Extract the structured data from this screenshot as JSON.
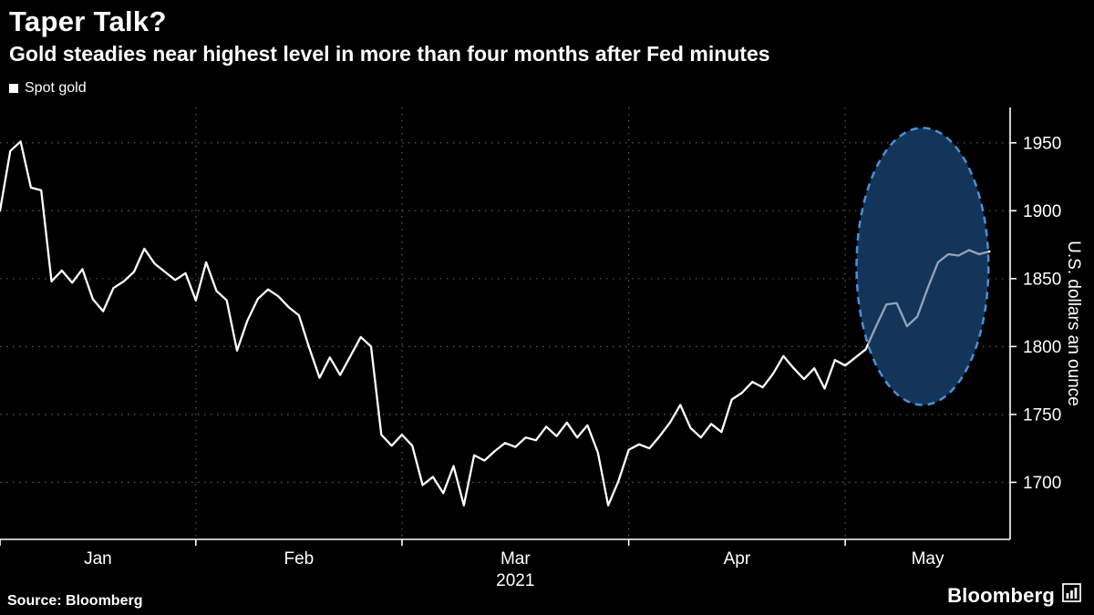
{
  "header": {
    "title": "Taper Talk?",
    "subtitle": "Gold steadies near highest level in more than four months after Fed minutes"
  },
  "legend": {
    "items": [
      {
        "label": "Spot gold",
        "marker_color": "#ffffff"
      }
    ]
  },
  "footer": {
    "source": "Source: Bloomberg",
    "brand": "Bloomberg"
  },
  "colors": {
    "background": "#000000",
    "text": "#ffffff",
    "grid": "#5c5c5c",
    "line": "#ffffff",
    "highlight_fill": "#14365a",
    "highlight_stroke": "#4d8fd6"
  },
  "chart_data": {
    "type": "line",
    "title": "Taper Talk?",
    "subtitle": "Gold steadies near highest level in more than four months after Fed minutes",
    "legend_position": "top-left",
    "grid": {
      "horizontal_dotted": true,
      "vertical_dotted_at_month_starts": true
    },
    "x_axis": {
      "unit": "trading-day index from start of Jan 2021",
      "domain": [
        0,
        98
      ],
      "months": [
        {
          "label": "Jan",
          "start_day": 0
        },
        {
          "label": "Feb",
          "start_day": 19
        },
        {
          "label": "Mar",
          "start_day": 39
        },
        {
          "label": "Apr",
          "start_day": 61
        },
        {
          "label": "May",
          "start_day": 82
        }
      ],
      "year_label": "2021",
      "year_center_day": 50
    },
    "y_axis": {
      "label": "U.S. dollars an ounce",
      "ticks": [
        1700,
        1750,
        1800,
        1850,
        1900,
        1950
      ],
      "range": [
        1658,
        1976
      ],
      "side": "right"
    },
    "series": [
      {
        "name": "Spot gold",
        "color": "#ffffff",
        "values": [
          1900,
          1944,
          1951,
          1917,
          1915,
          1848,
          1856,
          1847,
          1857,
          1835,
          1826,
          1843,
          1848,
          1855,
          1872,
          1861,
          1855,
          1849,
          1854,
          1834,
          1862,
          1841,
          1834,
          1797,
          1819,
          1835,
          1842,
          1837,
          1829,
          1823,
          1799,
          1777,
          1792,
          1779,
          1793,
          1807,
          1800,
          1735,
          1727,
          1735,
          1727,
          1698,
          1704,
          1692,
          1712,
          1683,
          1720,
          1716,
          1723,
          1729,
          1726,
          1733,
          1731,
          1741,
          1734,
          1744,
          1733,
          1742,
          1722,
          1683,
          1701,
          1724,
          1728,
          1725,
          1734,
          1744,
          1757,
          1740,
          1733,
          1743,
          1737,
          1761,
          1766,
          1774,
          1770,
          1780,
          1793,
          1784,
          1776,
          1784,
          1769,
          1790,
          1786,
          1792,
          1798,
          1815,
          1831,
          1832,
          1815,
          1822,
          1843,
          1862,
          1868,
          1867,
          1871,
          1868,
          1870
        ]
      }
    ],
    "annotation": {
      "type": "ellipse",
      "meaning": "highlight of recent rally after Fed minutes",
      "cx_day": 89.5,
      "cy_price": 1859,
      "rx_days": 6.4,
      "ry_price": 102,
      "fill": "#14365a",
      "fill_overlay_opacity": 0.45,
      "stroke": "#4d8fd6",
      "stroke_dasharray": "8 6"
    }
  }
}
